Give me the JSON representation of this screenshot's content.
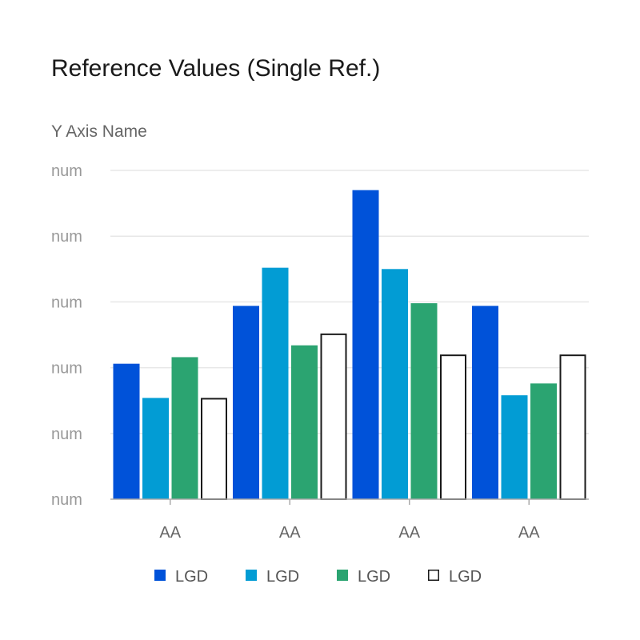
{
  "chart_data": {
    "type": "bar",
    "title": "Reference Values (Single Ref.)",
    "ylabel": "Y Axis Name",
    "xlabel": "",
    "ylim": [
      0,
      250
    ],
    "y_ticks": [
      {
        "value": 0,
        "label": "num"
      },
      {
        "value": 50,
        "label": "num"
      },
      {
        "value": 100,
        "label": "num"
      },
      {
        "value": 150,
        "label": "num"
      },
      {
        "value": 200,
        "label": "num"
      },
      {
        "value": 250,
        "label": "num"
      }
    ],
    "categories": [
      "AA",
      "AA",
      "AA",
      "AA"
    ],
    "series": [
      {
        "name": "LGD",
        "color": "#0052d9",
        "values": [
          103,
          147,
          235,
          147
        ]
      },
      {
        "name": "LGD",
        "color": "#029cd4",
        "values": [
          77,
          176,
          175,
          79
        ]
      },
      {
        "name": "LGD",
        "color": "#2ba471",
        "values": [
          108,
          117,
          149,
          88
        ]
      },
      {
        "name": "LGD",
        "color": "#ffffff",
        "stroke": "#1a1a1a",
        "values": [
          77,
          126,
          110,
          110
        ]
      }
    ],
    "grid": true,
    "legend_position": "bottom"
  }
}
